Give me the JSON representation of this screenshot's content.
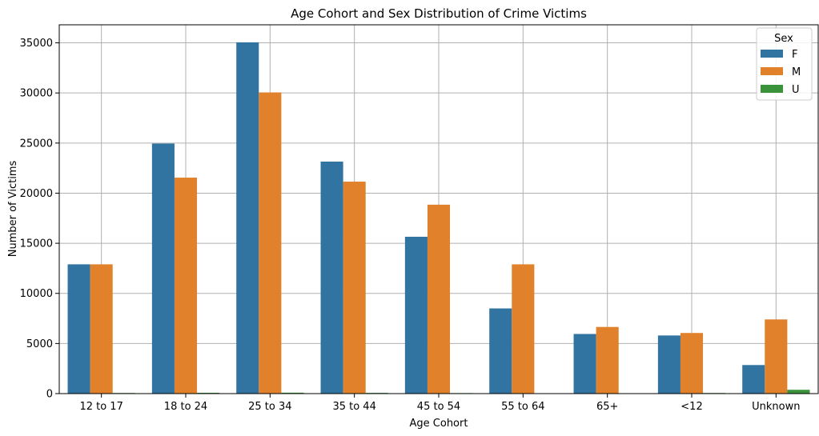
{
  "chart_data": {
    "type": "bar",
    "title": "Age Cohort and Sex Distribution of Crime Victims",
    "xlabel": "Age Cohort",
    "ylabel": "Number of Victims",
    "categories": [
      "12 to 17",
      "18 to 24",
      "25 to 34",
      "35 to 44",
      "45 to 54",
      "55 to 64",
      "65+",
      "<12",
      "Unknown"
    ],
    "series": [
      {
        "name": "F",
        "color": "#3274a1",
        "values": [
          12900,
          24950,
          35050,
          23150,
          15650,
          8500,
          5950,
          5800,
          2850
        ]
      },
      {
        "name": "M",
        "color": "#e1812c",
        "values": [
          12900,
          21550,
          30050,
          21150,
          18850,
          12900,
          6650,
          6050,
          7400
        ]
      },
      {
        "name": "U",
        "color": "#3a923a",
        "values": [
          60,
          80,
          90,
          70,
          50,
          0,
          0,
          60,
          380
        ]
      }
    ],
    "ylim": [
      0,
      36800
    ],
    "yticks": [
      0,
      5000,
      10000,
      15000,
      20000,
      25000,
      30000,
      35000
    ],
    "grid": true,
    "legend": {
      "title": "Sex",
      "position": "top-right"
    }
  }
}
